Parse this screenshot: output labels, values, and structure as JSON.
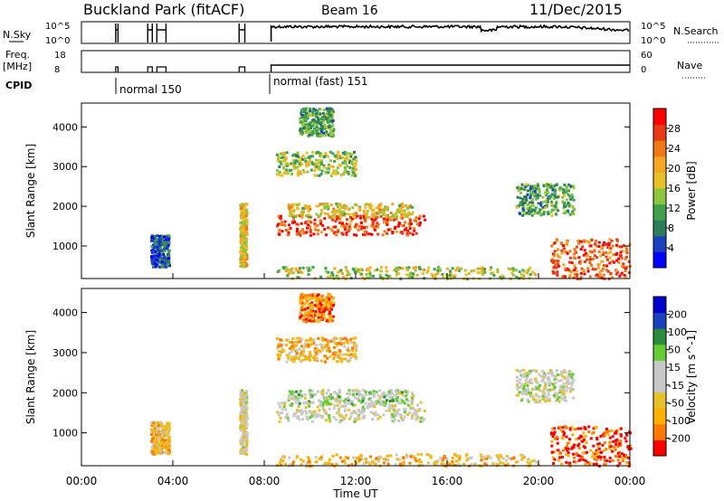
{
  "header": {
    "site": "Buckland Park (fitACF)",
    "beam": "Beam 16",
    "date": "11/Dec/2015"
  },
  "top_panel_labels": {
    "nsky": "N.Sky",
    "nsearch": "N.Search",
    "freq": "Freq.",
    "freq_unit": "[MHz]",
    "nave": "Nave",
    "cpid": "CPID",
    "nsky_ticks": [
      "10^5",
      "10^0"
    ],
    "freq_ticks": [
      "18",
      "8"
    ],
    "nave_ticks": [
      "60",
      "0"
    ],
    "cpid_segments": [
      {
        "label": "normal 150",
        "start_hour": 1.5
      },
      {
        "label": "normal (fast) 151",
        "start_hour": 8.3
      }
    ]
  },
  "colors": {
    "power_scale": [
      "#0000ff",
      "#1a3fbf",
      "#2d7d5a",
      "#3fa04f",
      "#8cc63f",
      "#e6c12a",
      "#f5a623",
      "#f07818",
      "#e83a14",
      "#ff0000"
    ],
    "velocity_scale": [
      "#ff0000",
      "#ff7a00",
      "#ffb000",
      "#e6c12a",
      "#c8c8c8",
      "#c8c8c8",
      "#66cc33",
      "#2d8c3c",
      "#1a3fbf",
      "#0000cc"
    ]
  },
  "chart_data": [
    {
      "type": "heatmap",
      "title": "Power",
      "ylabel": "Slant Range [km]",
      "xlabel": "",
      "x_range_hours": [
        0,
        24
      ],
      "ylim": [
        180,
        4600
      ],
      "y_ticks": [
        1000,
        2000,
        3000,
        4000
      ],
      "colorbar_label": "Power [dB]",
      "colorbar_ticks": [
        "4",
        "8",
        "12",
        "16",
        "20",
        "24",
        "28"
      ],
      "regions": [
        {
          "t0": 8.5,
          "t1": 15.0,
          "r0": 1300,
          "r1": 1800,
          "level": 0.85
        },
        {
          "t0": 9.0,
          "t1": 14.5,
          "r0": 1750,
          "r1": 2100,
          "level": 0.55
        },
        {
          "t0": 8.5,
          "t1": 12.0,
          "r0": 2800,
          "r1": 3400,
          "level": 0.45
        },
        {
          "t0": 9.5,
          "t1": 11.0,
          "r0": 3800,
          "r1": 4500,
          "level": 0.35
        },
        {
          "t0": 19.0,
          "t1": 21.5,
          "r0": 1800,
          "r1": 2600,
          "level": 0.35
        },
        {
          "t0": 20.5,
          "t1": 24.0,
          "r0": 200,
          "r1": 1200,
          "level": 0.8
        },
        {
          "t0": 8.5,
          "t1": 20.0,
          "r0": 200,
          "r1": 500,
          "level": 0.5
        },
        {
          "t0": 3.0,
          "t1": 3.8,
          "r0": 500,
          "r1": 1300,
          "level": 0.2
        },
        {
          "t0": 6.9,
          "t1": 7.2,
          "r0": 500,
          "r1": 2100,
          "level": 0.6
        }
      ]
    },
    {
      "type": "heatmap",
      "title": "Velocity",
      "ylabel": "Slant Range [km]",
      "xlabel": "Time UT",
      "x_range_hours": [
        0,
        24
      ],
      "x_ticks": [
        "00:00",
        "04:00",
        "08:00",
        "12:00",
        "16:00",
        "20:00",
        "00:00"
      ],
      "ylim": [
        180,
        4600
      ],
      "y_ticks": [
        1000,
        2000,
        3000,
        4000
      ],
      "colorbar_label": "Velocity [m s^-1]",
      "colorbar_ticks": [
        "-200",
        "-100",
        "-50",
        "-15",
        "15",
        "50",
        "100",
        "200"
      ],
      "regions": [
        {
          "t0": 8.5,
          "t1": 15.0,
          "r0": 1300,
          "r1": 1800,
          "level": 0.5
        },
        {
          "t0": 9.0,
          "t1": 14.5,
          "r0": 1750,
          "r1": 2100,
          "level": 0.55
        },
        {
          "t0": 8.5,
          "t1": 12.0,
          "r0": 2800,
          "r1": 3400,
          "level": 0.3
        },
        {
          "t0": 9.5,
          "t1": 11.0,
          "r0": 3800,
          "r1": 4500,
          "level": 0.2
        },
        {
          "t0": 19.0,
          "t1": 21.5,
          "r0": 1800,
          "r1": 2600,
          "level": 0.5
        },
        {
          "t0": 20.5,
          "t1": 24.0,
          "r0": 200,
          "r1": 1200,
          "level": 0.1
        },
        {
          "t0": 8.5,
          "t1": 20.0,
          "r0": 200,
          "r1": 500,
          "level": 0.3
        },
        {
          "t0": 3.0,
          "t1": 3.8,
          "r0": 500,
          "r1": 1300,
          "level": 0.3
        },
        {
          "t0": 6.9,
          "t1": 7.2,
          "r0": 500,
          "r1": 2100,
          "level": 0.45
        }
      ]
    }
  ]
}
